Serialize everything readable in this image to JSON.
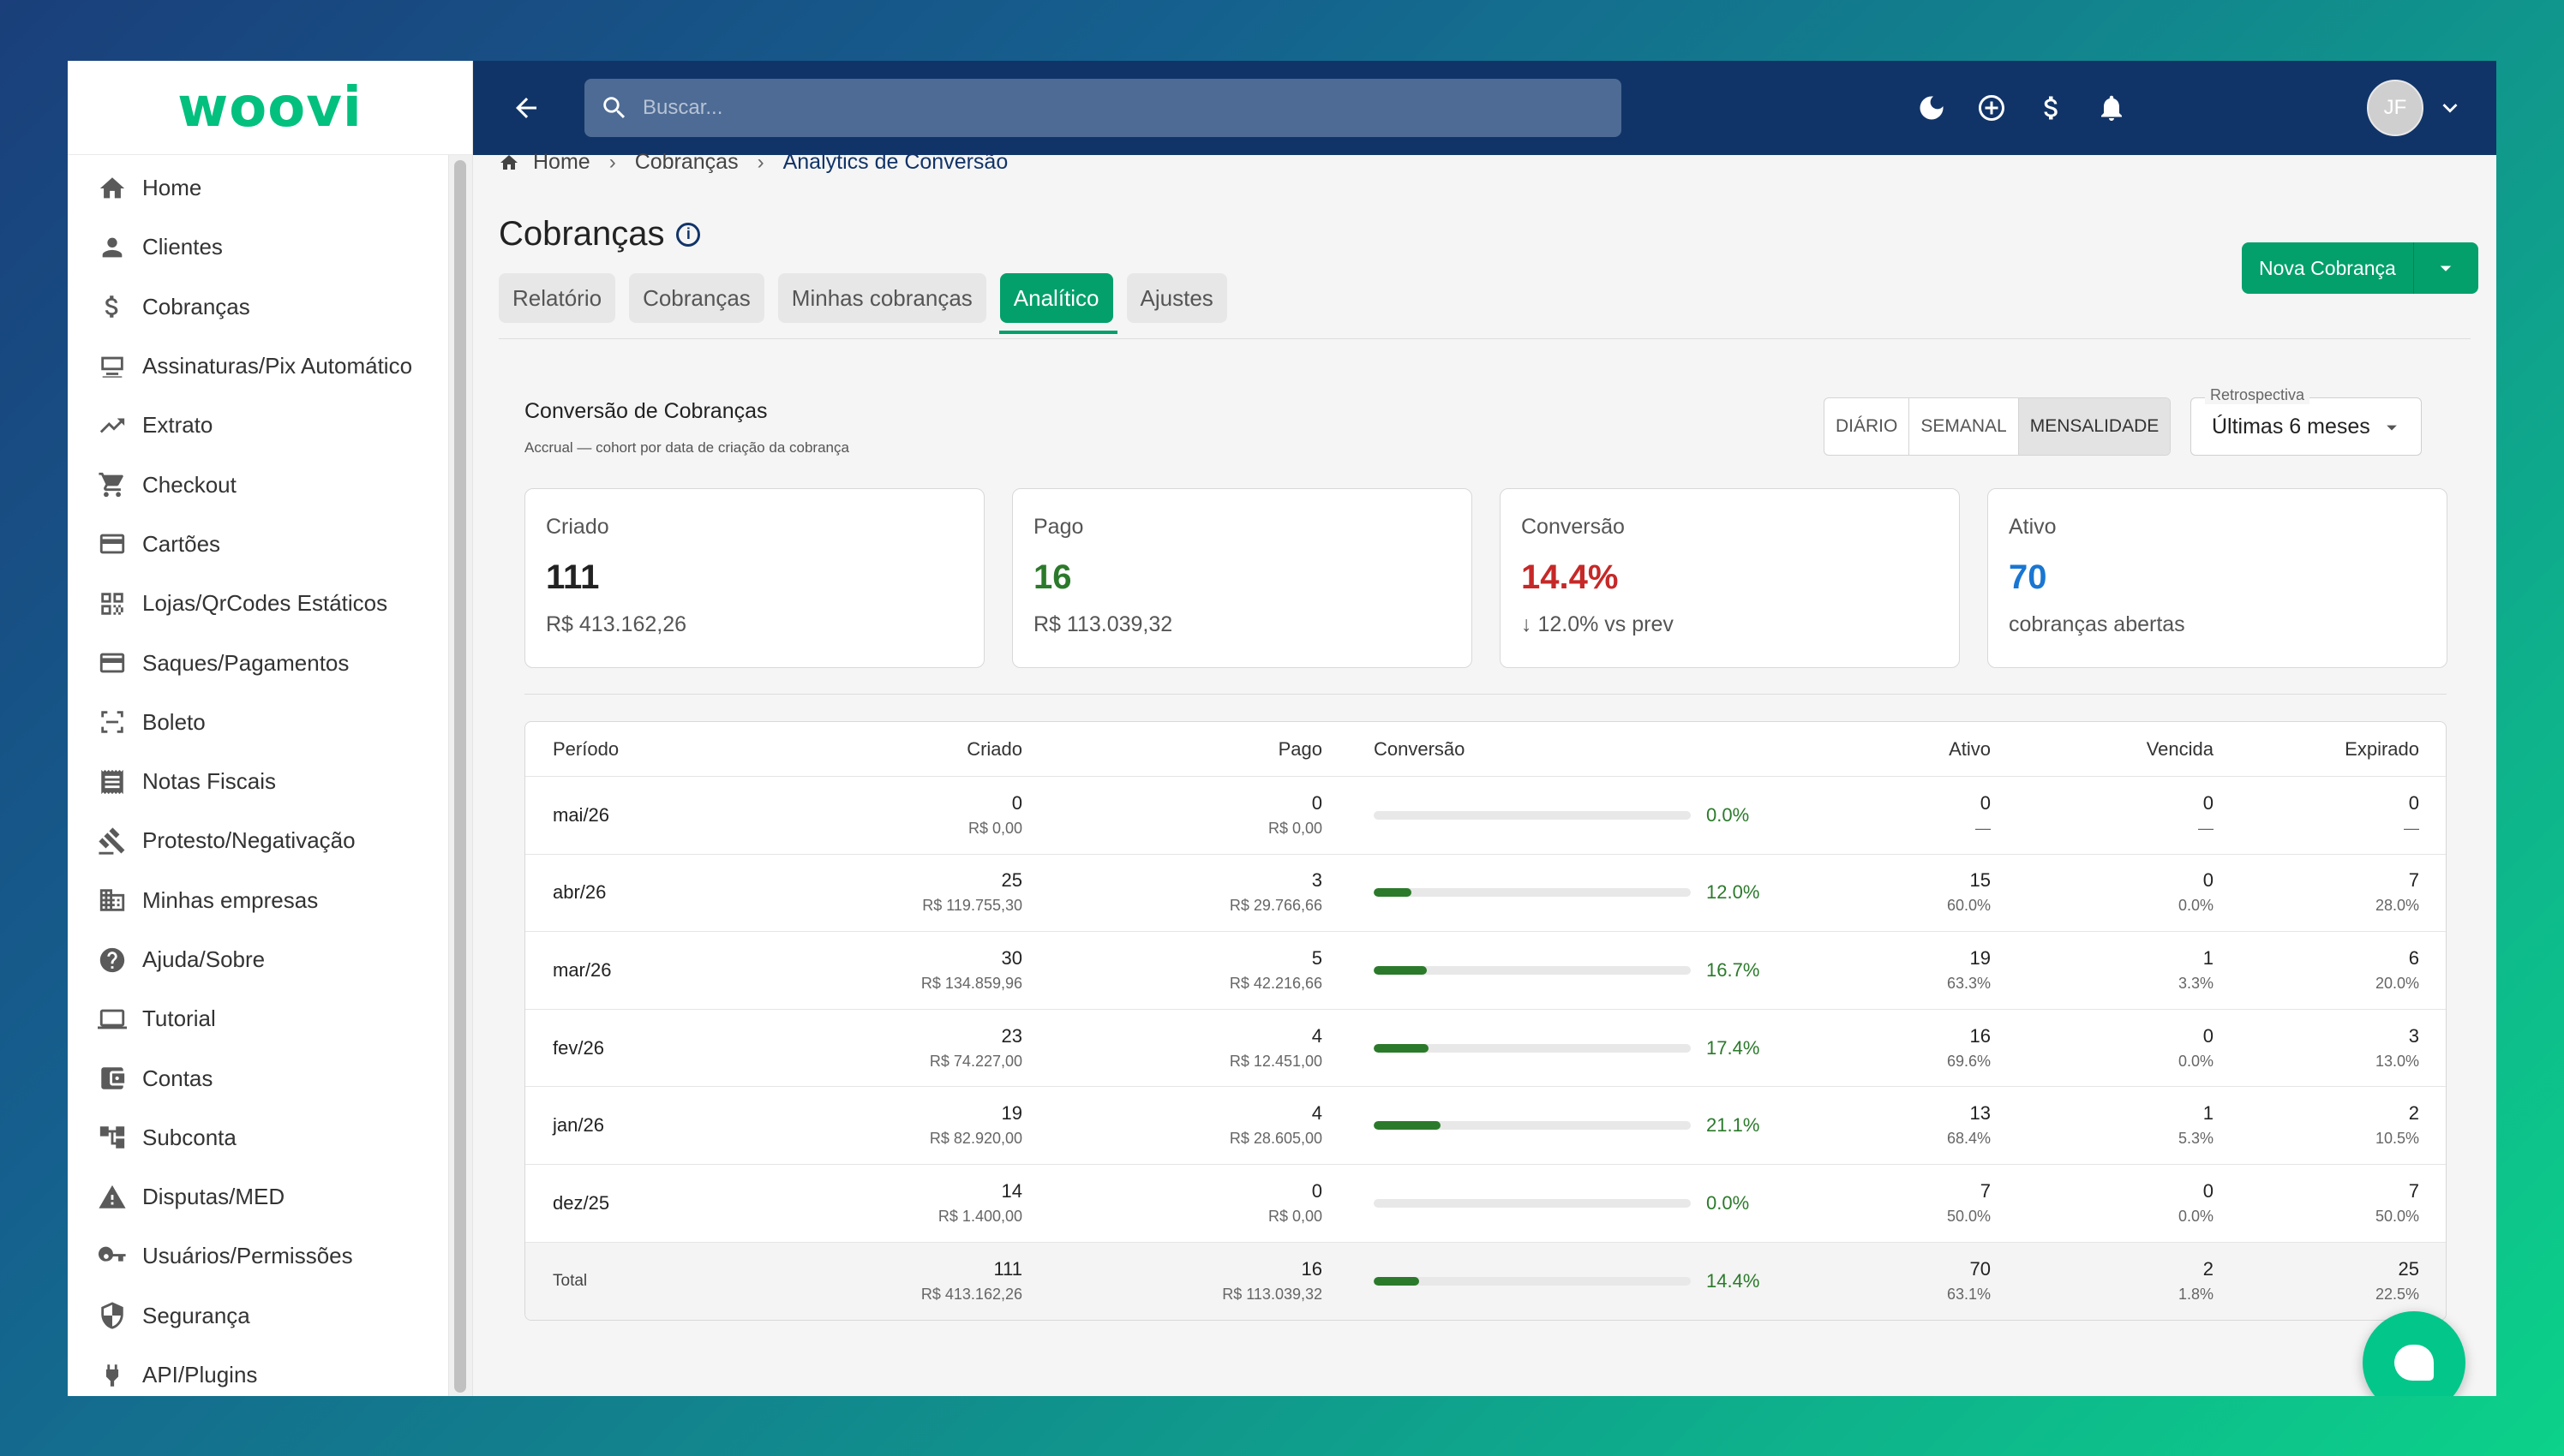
{
  "app": {
    "logo": "woovi"
  },
  "sidebar": {
    "items": [
      {
        "label": "Home",
        "icon": "home-icon"
      },
      {
        "label": "Clientes",
        "icon": "person-icon"
      },
      {
        "label": "Cobranças",
        "icon": "dollar-icon"
      },
      {
        "label": "Assinaturas/Pix Automático",
        "icon": "subscription-icon"
      },
      {
        "label": "Extrato",
        "icon": "trending-up-icon"
      },
      {
        "label": "Checkout",
        "icon": "cart-icon"
      },
      {
        "label": "Cartões",
        "icon": "credit-card-icon"
      },
      {
        "label": "Lojas/QrCodes Estáticos",
        "icon": "qrcode-icon"
      },
      {
        "label": "Saques/Pagamentos",
        "icon": "payment-card-icon"
      },
      {
        "label": "Boleto",
        "icon": "barcode-scan-icon"
      },
      {
        "label": "Notas Fiscais",
        "icon": "receipt-icon"
      },
      {
        "label": "Protesto/Negativação",
        "icon": "gavel-icon"
      },
      {
        "label": "Minhas empresas",
        "icon": "building-icon"
      },
      {
        "label": "Ajuda/Sobre",
        "icon": "help-icon"
      },
      {
        "label": "Tutorial",
        "icon": "laptop-icon"
      },
      {
        "label": "Contas",
        "icon": "wallet-icon"
      },
      {
        "label": "Subconta",
        "icon": "hierarchy-icon"
      },
      {
        "label": "Disputas/MED",
        "icon": "warning-icon"
      },
      {
        "label": "Usuários/Permissões",
        "icon": "key-icon"
      },
      {
        "label": "Segurança",
        "icon": "shield-icon"
      },
      {
        "label": "API/Plugins",
        "icon": "plug-icon"
      }
    ]
  },
  "topbar": {
    "search_placeholder": "Buscar...",
    "avatar_initials": "JF"
  },
  "breadcrumb": {
    "home": "Home",
    "section": "Cobranças",
    "current": "Analytics de Conversão"
  },
  "page": {
    "title": "Cobranças",
    "info_glyph": "i",
    "new_button": "Nova Cobrança",
    "tabs": [
      "Relatório",
      "Cobranças",
      "Minhas cobranças",
      "Analítico",
      "Ajustes"
    ],
    "active_tab": "Analítico"
  },
  "analytics": {
    "title": "Conversão de Cobranças",
    "subtitle": "Accrual — cohort por data de criação da cobrança",
    "granularity": [
      "DIÁRIO",
      "SEMANAL",
      "MENSALIDADE"
    ],
    "active_granularity": "MENSALIDADE",
    "retro_label": "Retrospectiva",
    "retro_value": "Últimas 6 meses"
  },
  "metrics": [
    {
      "label": "Criado",
      "value": "111",
      "sub": "R$ 413.162,26",
      "color": "#222222"
    },
    {
      "label": "Pago",
      "value": "16",
      "sub": "R$ 113.039,32",
      "color": "#2b7a2b"
    },
    {
      "label": "Conversão",
      "value": "14.4%",
      "sub": "↓ 12.0% vs prev",
      "color": "#c62828"
    },
    {
      "label": "Ativo",
      "value": "70",
      "sub": "cobranças abertas",
      "color": "#1976d2"
    }
  ],
  "table": {
    "headers": {
      "periodo": "Período",
      "criado": "Criado",
      "pago": "Pago",
      "conversao": "Conversão",
      "ativo": "Ativo",
      "vencida": "Vencida",
      "expirado": "Expirado"
    },
    "rows": [
      {
        "periodo": "mai/26",
        "criado": "0",
        "criado_sub": "R$ 0,00",
        "pago": "0",
        "pago_sub": "R$ 0,00",
        "conv": 0.0,
        "conv_label": "0.0%",
        "ativo": "0",
        "ativo_sub": "—",
        "vencida": "0",
        "vencida_sub": "—",
        "expirado": "0",
        "expirado_sub": "—"
      },
      {
        "periodo": "abr/26",
        "criado": "25",
        "criado_sub": "R$ 119.755,30",
        "pago": "3",
        "pago_sub": "R$ 29.766,66",
        "conv": 12.0,
        "conv_label": "12.0%",
        "ativo": "15",
        "ativo_sub": "60.0%",
        "vencida": "0",
        "vencida_sub": "0.0%",
        "expirado": "7",
        "expirado_sub": "28.0%"
      },
      {
        "periodo": "mar/26",
        "criado": "30",
        "criado_sub": "R$ 134.859,96",
        "pago": "5",
        "pago_sub": "R$ 42.216,66",
        "conv": 16.7,
        "conv_label": "16.7%",
        "ativo": "19",
        "ativo_sub": "63.3%",
        "vencida": "1",
        "vencida_sub": "3.3%",
        "expirado": "6",
        "expirado_sub": "20.0%"
      },
      {
        "periodo": "fev/26",
        "criado": "23",
        "criado_sub": "R$ 74.227,00",
        "pago": "4",
        "pago_sub": "R$ 12.451,00",
        "conv": 17.4,
        "conv_label": "17.4%",
        "ativo": "16",
        "ativo_sub": "69.6%",
        "vencida": "0",
        "vencida_sub": "0.0%",
        "expirado": "3",
        "expirado_sub": "13.0%"
      },
      {
        "periodo": "jan/26",
        "criado": "19",
        "criado_sub": "R$ 82.920,00",
        "pago": "4",
        "pago_sub": "R$ 28.605,00",
        "conv": 21.1,
        "conv_label": "21.1%",
        "ativo": "13",
        "ativo_sub": "68.4%",
        "vencida": "1",
        "vencida_sub": "5.3%",
        "expirado": "2",
        "expirado_sub": "10.5%"
      },
      {
        "periodo": "dez/25",
        "criado": "14",
        "criado_sub": "R$ 1.400,00",
        "pago": "0",
        "pago_sub": "R$ 0,00",
        "conv": 0.0,
        "conv_label": "0.0%",
        "ativo": "7",
        "ativo_sub": "50.0%",
        "vencida": "0",
        "vencida_sub": "0.0%",
        "expirado": "7",
        "expirado_sub": "50.0%"
      }
    ],
    "total": {
      "periodo": "Total",
      "criado": "111",
      "criado_sub": "R$ 413.162,26",
      "pago": "16",
      "pago_sub": "R$ 113.039,32",
      "conv": 14.4,
      "conv_label": "14.4%",
      "ativo": "70",
      "ativo_sub": "63.1%",
      "vencida": "2",
      "vencida_sub": "1.8%",
      "expirado": "25",
      "expirado_sub": "22.5%"
    }
  }
}
